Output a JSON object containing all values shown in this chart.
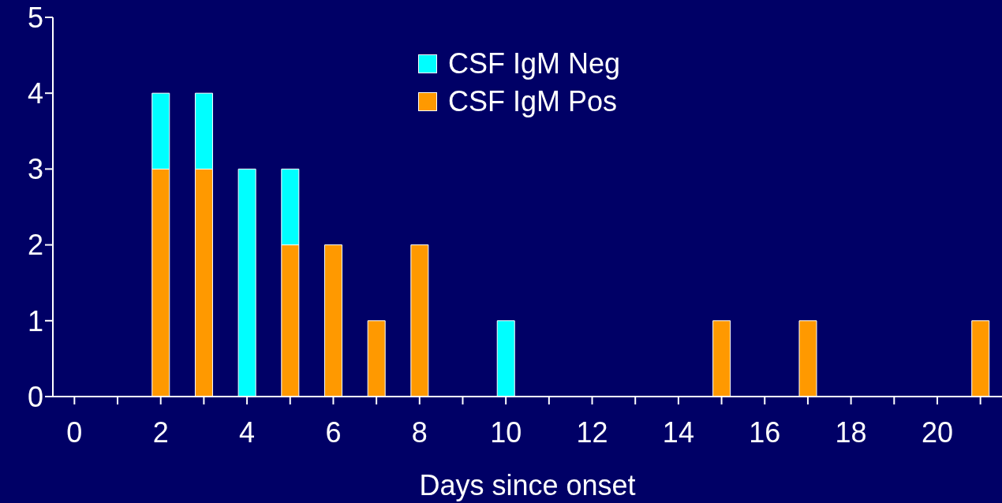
{
  "chart_data": {
    "type": "bar",
    "stacked": true,
    "xlabel": "Days since onset",
    "categories": [
      "0",
      null,
      "2",
      null,
      "4",
      null,
      "6",
      null,
      "8",
      null,
      "10",
      null,
      "12",
      null,
      "14",
      null,
      "16",
      null,
      "18",
      null,
      "20",
      null
    ],
    "series": [
      {
        "name": "CSF IgM Pos",
        "color": "#ff9900",
        "values": [
          0,
          0,
          3,
          3,
          0,
          2,
          2,
          1,
          2,
          0,
          0,
          0,
          0,
          0,
          0,
          1,
          0,
          1,
          0,
          0,
          0,
          1
        ]
      },
      {
        "name": "CSF IgM Neg",
        "color": "#00ffff",
        "values": [
          0,
          0,
          1,
          1,
          3,
          1,
          0,
          0,
          0,
          0,
          1,
          0,
          0,
          0,
          0,
          0,
          0,
          0,
          0,
          0,
          0,
          0
        ]
      }
    ],
    "ylim": [
      0,
      5
    ],
    "yticks": [
      0,
      1,
      2,
      3,
      4,
      5
    ],
    "grid": false,
    "legend": "top"
  }
}
